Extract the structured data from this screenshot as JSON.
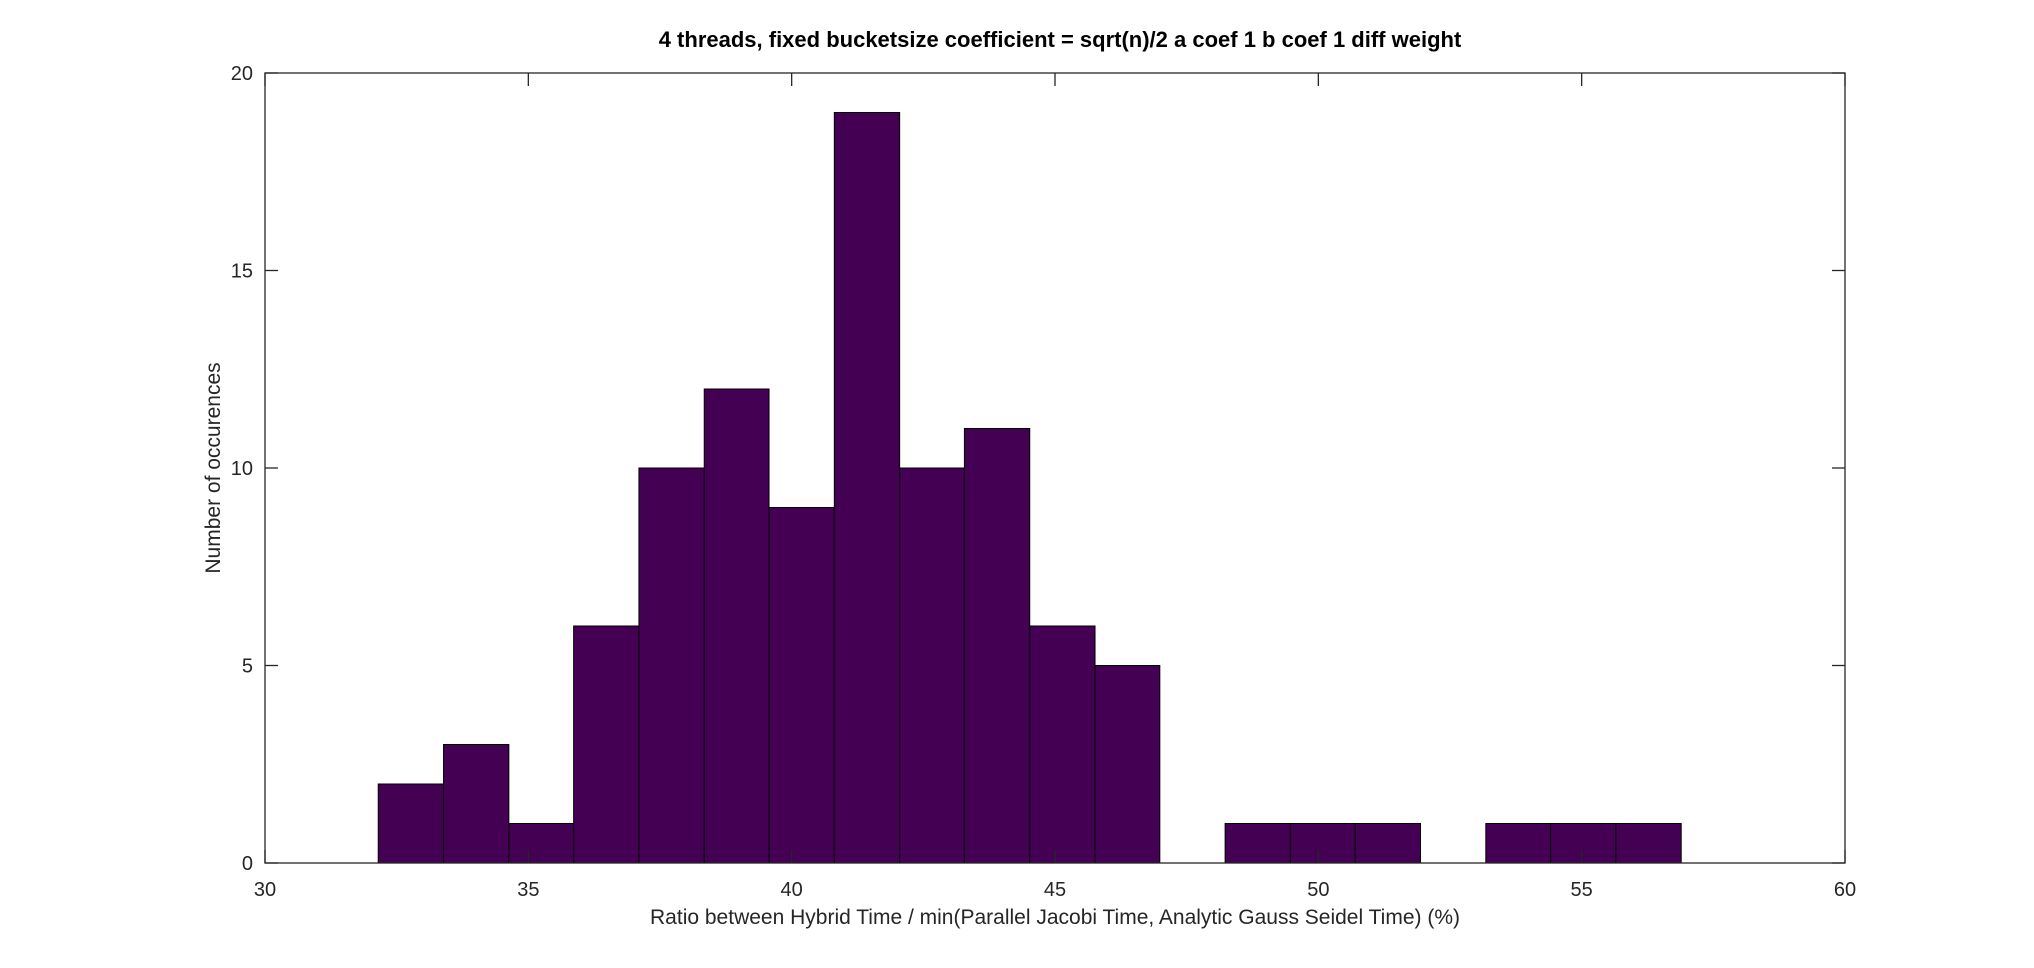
{
  "chart_data": {
    "type": "bar",
    "title": "4 threads, fixed bucketsize coefficient = sqrt(n)/2 a coef 1 b coef 1 diff weight",
    "xlabel": "Ratio between Hybrid Time / min(Parallel Jacobi Time, Analytic Gauss Seidel Time) (%)",
    "ylabel": "Number of occurences",
    "xlim": [
      30,
      60
    ],
    "ylim": [
      0,
      20
    ],
    "xticks": [
      30,
      35,
      40,
      45,
      50,
      55,
      60
    ],
    "yticks": [
      0,
      5,
      10,
      15,
      20
    ],
    "bar_color": "#440154",
    "grid": false,
    "bins": [
      {
        "x0": 32.15,
        "x1": 33.39,
        "count": 2
      },
      {
        "x0": 33.39,
        "x1": 34.63,
        "count": 3
      },
      {
        "x0": 34.63,
        "x1": 35.86,
        "count": 1
      },
      {
        "x0": 35.86,
        "x1": 37.1,
        "count": 6
      },
      {
        "x0": 37.1,
        "x1": 38.34,
        "count": 10
      },
      {
        "x0": 38.34,
        "x1": 39.57,
        "count": 12
      },
      {
        "x0": 39.57,
        "x1": 40.81,
        "count": 9
      },
      {
        "x0": 40.81,
        "x1": 42.05,
        "count": 19
      },
      {
        "x0": 42.05,
        "x1": 43.28,
        "count": 10
      },
      {
        "x0": 43.28,
        "x1": 44.52,
        "count": 11
      },
      {
        "x0": 44.52,
        "x1": 45.76,
        "count": 6
      },
      {
        "x0": 45.76,
        "x1": 46.99,
        "count": 5
      },
      {
        "x0": 46.99,
        "x1": 48.23,
        "count": 0
      },
      {
        "x0": 48.23,
        "x1": 49.47,
        "count": 1
      },
      {
        "x0": 49.47,
        "x1": 50.7,
        "count": 1
      },
      {
        "x0": 50.7,
        "x1": 51.94,
        "count": 1
      },
      {
        "x0": 51.94,
        "x1": 53.18,
        "count": 0
      },
      {
        "x0": 53.18,
        "x1": 54.41,
        "count": 1
      },
      {
        "x0": 54.41,
        "x1": 55.65,
        "count": 1
      },
      {
        "x0": 55.65,
        "x1": 56.89,
        "count": 1
      }
    ]
  }
}
